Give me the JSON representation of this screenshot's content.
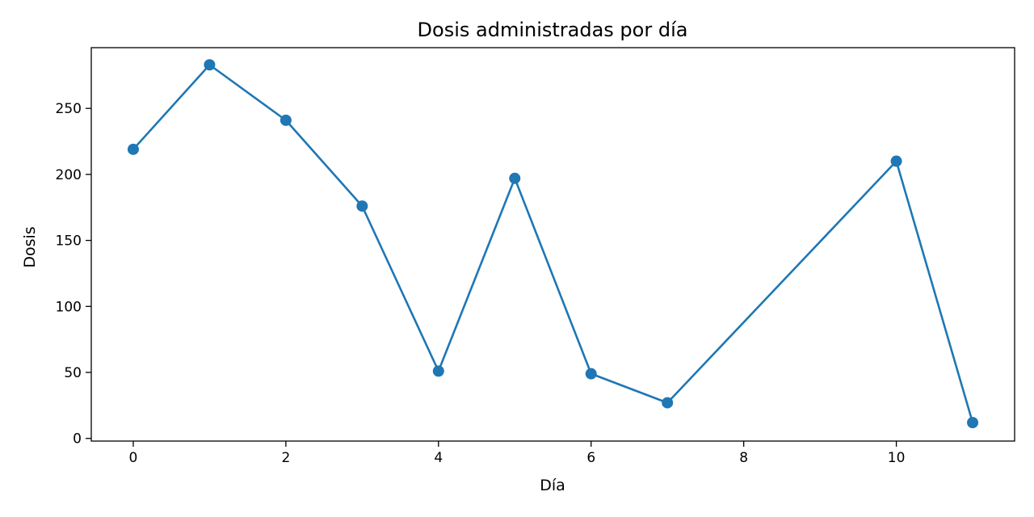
{
  "chart_data": {
    "type": "line",
    "title": "Dosis administradas por día",
    "xlabel": "Día",
    "ylabel": "Dosis",
    "xlim": [
      -0.55,
      11.55
    ],
    "ylim": [
      -2,
      296
    ],
    "xticks": [
      0,
      2,
      4,
      6,
      8,
      10
    ],
    "yticks": [
      0,
      50,
      100,
      150,
      200,
      250
    ],
    "grid": false,
    "series": [
      {
        "color": "#1f77b4",
        "marker": "circle",
        "x": [
          0,
          1,
          2,
          3,
          4,
          5,
          6,
          7,
          10,
          11
        ],
        "y": [
          219,
          283,
          241,
          176,
          51,
          197,
          49,
          27,
          210,
          12
        ]
      }
    ]
  }
}
